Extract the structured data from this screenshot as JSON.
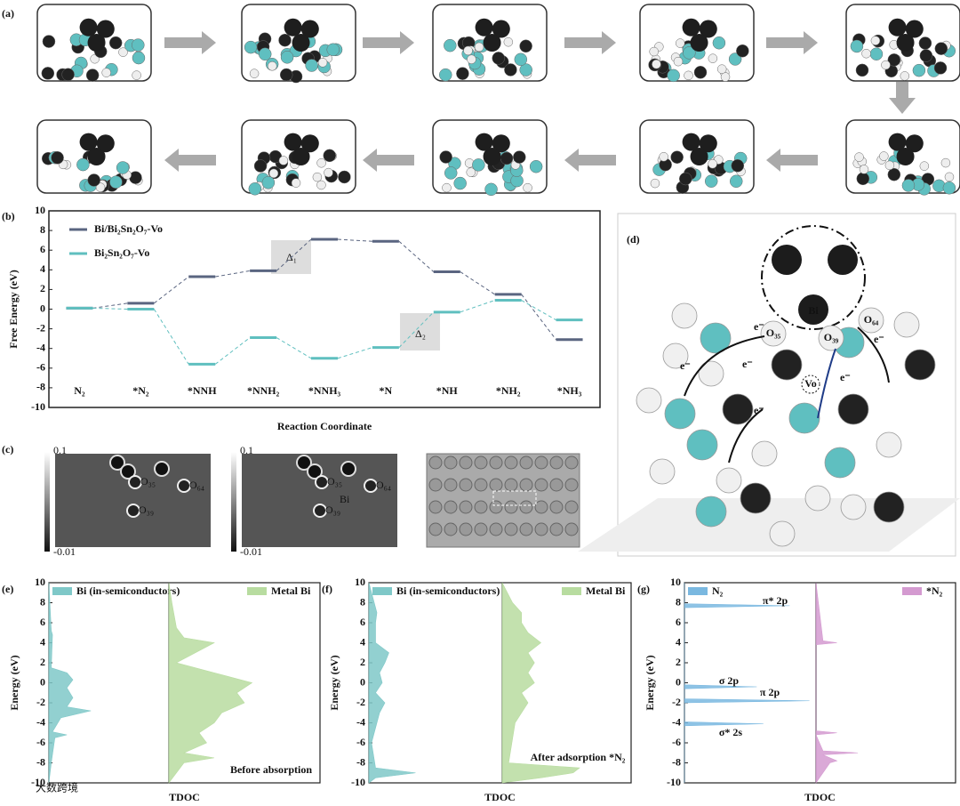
{
  "chart_data": [
    {
      "type": "energy",
      "label": "(b)",
      "ylabel": "Free Energy (eV)",
      "xlabel": "Reaction Coordinate",
      "categories": [
        "N₂",
        "*N₂",
        "*NNH",
        "*NNH₂",
        "*NNH₃",
        "*N",
        "*NH",
        "*NH₂",
        "*NH₃"
      ],
      "series": [
        {
          "name": "Bi/Bi₂Sn₂O₇-Vo",
          "color": "#5a6580",
          "values": [
            0.1,
            0.6,
            3.3,
            3.9,
            7.1,
            6.9,
            3.8,
            1.5,
            -3.1
          ]
        },
        {
          "name": "Bi₂Sn₂O₇-Vo",
          "color": "#5fbfbf",
          "values": [
            0.1,
            0.0,
            -5.6,
            -2.9,
            -5.0,
            -3.9,
            -0.3,
            0.9,
            -1.1
          ]
        }
      ],
      "annotations": [
        "Δ₁",
        "Δ₂"
      ],
      "ylim": [
        -10,
        10
      ],
      "yticks": [
        -10,
        -8,
        -6,
        -4,
        -2,
        0,
        2,
        4,
        6,
        8,
        10
      ]
    },
    {
      "type": "dos",
      "label": "(e)",
      "ylabel": "Energy (eV)",
      "xlabel": "TDOC",
      "ylim": [
        -10,
        10
      ],
      "yticks": [
        -10,
        -8,
        -6,
        -4,
        -2,
        0,
        2,
        4,
        6,
        8,
        10
      ],
      "series": [
        {
          "name": "Bi (in-semiconductors)",
          "color": "#7fc8c8",
          "x": [
            -10,
            -8,
            -5.5,
            -5.2,
            -4.9,
            -3.5,
            -2.8,
            -2.4,
            -1.5,
            -0.5,
            0.3,
            1,
            1.5,
            4.8,
            5.2,
            10
          ],
          "values": [
            0,
            0.02,
            0.05,
            0.15,
            0.03,
            0.1,
            0.35,
            0.15,
            0.2,
            0.15,
            0.2,
            0.15,
            0.02,
            0.03,
            0.02,
            0
          ]
        },
        {
          "name": "Metal Bi",
          "color": "#b8dca0",
          "x": [
            -10,
            -8,
            -7.5,
            -7,
            -6,
            -5,
            -4,
            -3,
            -2,
            -1,
            0,
            1,
            2,
            4,
            4.5,
            5.5,
            8,
            10
          ],
          "values": [
            0,
            0.1,
            0.3,
            0.1,
            0.25,
            0.2,
            0.3,
            0.35,
            0.5,
            0.45,
            0.55,
            0.3,
            0.05,
            0.3,
            0.1,
            0.05,
            0.02,
            0
          ]
        }
      ],
      "annotations": [
        "Before absorption"
      ]
    },
    {
      "type": "dos",
      "label": "(f)",
      "ylabel": "Energy (eV)",
      "xlabel": "TDOC",
      "ylim": [
        -10,
        10
      ],
      "yticks": [
        -10,
        -8,
        -6,
        -4,
        -2,
        0,
        2,
        4,
        6,
        8,
        10
      ],
      "series": [
        {
          "name": "Bi (in-semiconductors)",
          "color": "#7fc8c8",
          "x": [
            -10,
            -9.5,
            -9,
            -8.5,
            -6,
            -3,
            -2,
            -1,
            0,
            1,
            2,
            3,
            4,
            6,
            7,
            8,
            10
          ],
          "values": [
            0,
            0.05,
            0.35,
            0.05,
            0.02,
            0.08,
            0.12,
            0.05,
            0.1,
            0.08,
            0.12,
            0.15,
            0.05,
            0.05,
            0.06,
            0.04,
            0
          ]
        },
        {
          "name": "Metal Bi",
          "color": "#b8dca0",
          "x": [
            -10,
            -9.5,
            -9,
            -8.5,
            -8,
            -4,
            -3,
            -2,
            -1,
            0,
            1,
            2,
            3,
            4,
            5,
            6,
            7,
            8,
            10
          ],
          "values": [
            0,
            0.3,
            0.55,
            0.6,
            0.05,
            0.1,
            0.15,
            0.2,
            0.15,
            0.25,
            0.2,
            0.25,
            0.2,
            0.3,
            0.2,
            0.15,
            0.15,
            0.08,
            0
          ]
        }
      ],
      "annotations": [
        "After adsorption *N₂"
      ]
    },
    {
      "type": "dos",
      "label": "(g)",
      "ylabel": "Energy (eV)",
      "xlabel": "TDOC",
      "ylim": [
        -10,
        10
      ],
      "yticks": [
        -10,
        -8,
        -6,
        -4,
        -2,
        0,
        2,
        4,
        6,
        8,
        10
      ],
      "series": [
        {
          "name": "N₂",
          "color": "#7ab8e0",
          "x": [
            -10,
            -4.3,
            -4.1,
            -3.9,
            -2,
            -1.8,
            -1.6,
            -0.6,
            -0.4,
            -0.2,
            7.5,
            7.7,
            7.9,
            10
          ],
          "values": [
            0,
            0,
            0.6,
            0,
            0,
            0.95,
            0,
            0,
            0.55,
            0,
            0,
            0.8,
            0,
            0
          ]
        },
        {
          "name": "*N₂",
          "color": "#d49ad0",
          "x": [
            -10,
            -8,
            -7.8,
            -7.2,
            -7,
            -6.8,
            -5.2,
            -5,
            -4.8,
            3.8,
            4,
            4.2,
            10
          ],
          "values": [
            0,
            0.1,
            0.15,
            0.05,
            0.3,
            0.05,
            0,
            0.15,
            0,
            0,
            0.15,
            0.05,
            0
          ]
        }
      ],
      "annotations": [
        "π* 2p",
        "σ 2p",
        "π 2p",
        "σ* 2s"
      ]
    }
  ],
  "panels": {
    "a": {
      "label": "(a)"
    },
    "c": {
      "label": "(c)",
      "colorbar_max": 0.1,
      "colorbar_min": -0.01,
      "atoms": [
        "O₃₅",
        "O₃₉",
        "O₆₄",
        "Bi"
      ]
    },
    "d": {
      "label": "(d)",
      "bi": "Bi",
      "o35": "O₃₅",
      "o39": "O₃₉",
      "o64": "O₆₄",
      "vo": "Vo",
      "electron": "e⁻"
    },
    "watermark": "大数跨境"
  }
}
